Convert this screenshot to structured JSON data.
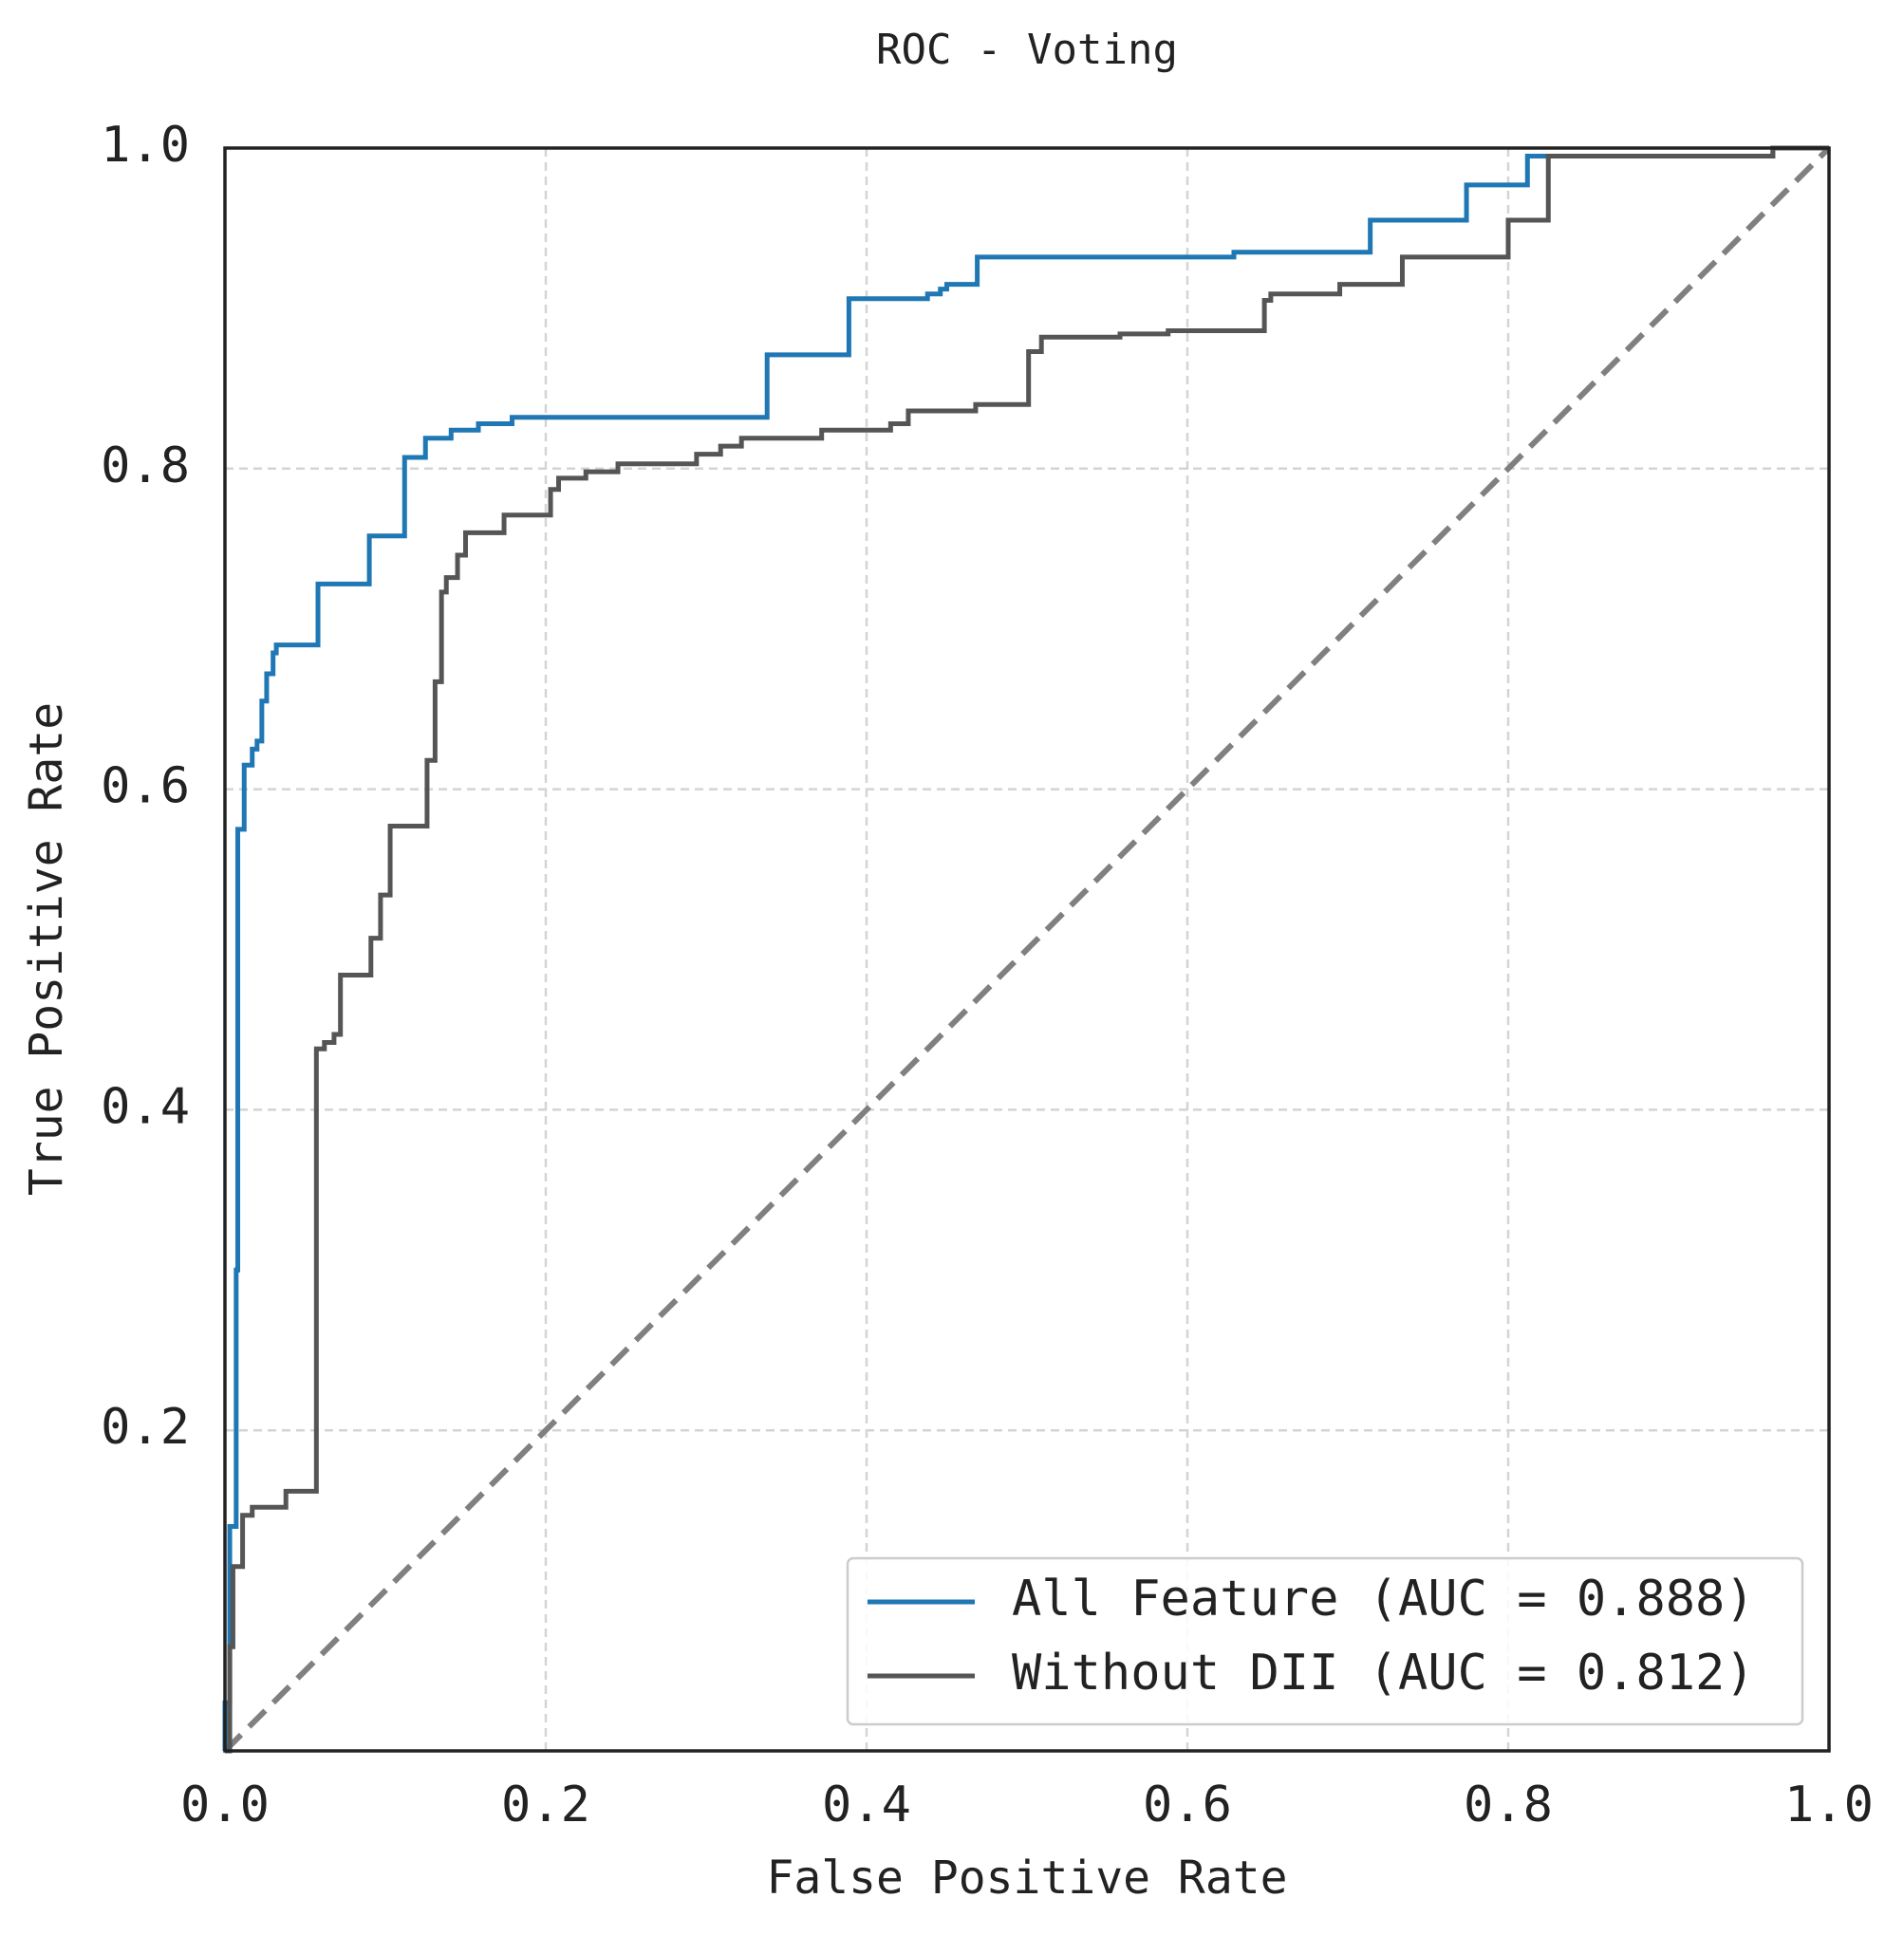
{
  "chart_data": {
    "type": "line",
    "title": "ROC - Voting",
    "x_label": "False Positive Rate",
    "y_label": "True Positive Rate",
    "xlim": [
      0,
      1
    ],
    "ylim": [
      0,
      1
    ],
    "xticks": [
      {
        "value": 0,
        "label": "0.0"
      },
      0.2,
      0.4,
      0.6,
      0.8,
      {
        "value": 1,
        "label": "1.0"
      }
    ],
    "yticks": [
      0.2,
      0.4,
      0.6,
      0.8,
      {
        "value": 1,
        "label": "1.0"
      }
    ],
    "grid": true,
    "legend": "lower right",
    "diagonal": true,
    "diagonal_color": "#808080",
    "series": [
      {
        "name": "All Feature (AUC = 0.888)",
        "color": "#1f77b4",
        "x": [
          0,
          0,
          0.003,
          0.003,
          0.007,
          0.007,
          0.008,
          0.008,
          0.012,
          0.012,
          0.017,
          0.017,
          0.02,
          0.02,
          0.023,
          0.023,
          0.026,
          0.026,
          0.03,
          0.03,
          0.032,
          0.032,
          0.058,
          0.058,
          0.09,
          0.09,
          0.112,
          0.112,
          0.125,
          0.125,
          0.141,
          0.141,
          0.158,
          0.158,
          0.179,
          0.179,
          0.338,
          0.338,
          0.389,
          0.389,
          0.438,
          0.438,
          0.446,
          0.446,
          0.45,
          0.45,
          0.469,
          0.469,
          0.629,
          0.629,
          0.714,
          0.714,
          0.774,
          0.774,
          0.812,
          0.812,
          0.965,
          0.965,
          1
        ],
        "values": [
          0,
          0.03,
          0.03,
          0.14,
          0.14,
          0.3,
          0.3,
          0.575,
          0.575,
          0.615,
          0.615,
          0.625,
          0.625,
          0.63,
          0.63,
          0.655,
          0.655,
          0.672,
          0.672,
          0.685,
          0.685,
          0.69,
          0.69,
          0.728,
          0.728,
          0.758,
          0.758,
          0.807,
          0.807,
          0.819,
          0.819,
          0.824,
          0.824,
          0.828,
          0.828,
          0.832,
          0.832,
          0.871,
          0.871,
          0.906,
          0.906,
          0.909,
          0.909,
          0.912,
          0.912,
          0.915,
          0.915,
          0.932,
          0.932,
          0.935,
          0.935,
          0.955,
          0.955,
          0.977,
          0.977,
          0.995,
          0.995,
          1,
          1
        ]
      },
      {
        "name": "Without DII (AUC = 0.812)",
        "color": "#555555",
        "x": [
          0,
          0.003,
          0.003,
          0.005,
          0.005,
          0.011,
          0.011,
          0.017,
          0.017,
          0.038,
          0.038,
          0.057,
          0.057,
          0.062,
          0.062,
          0.068,
          0.068,
          0.072,
          0.072,
          0.091,
          0.091,
          0.097,
          0.097,
          0.103,
          0.103,
          0.126,
          0.126,
          0.131,
          0.131,
          0.135,
          0.135,
          0.138,
          0.138,
          0.145,
          0.145,
          0.15,
          0.15,
          0.174,
          0.174,
          0.203,
          0.203,
          0.208,
          0.208,
          0.225,
          0.225,
          0.245,
          0.245,
          0.294,
          0.294,
          0.309,
          0.309,
          0.322,
          0.322,
          0.372,
          0.372,
          0.415,
          0.415,
          0.426,
          0.426,
          0.468,
          0.468,
          0.501,
          0.501,
          0.509,
          0.509,
          0.558,
          0.558,
          0.588,
          0.588,
          0.648,
          0.648,
          0.652,
          0.652,
          0.695,
          0.695,
          0.734,
          0.734,
          0.8,
          0.8,
          0.825,
          0.825,
          0.965,
          0.965,
          1
        ],
        "values": [
          0,
          0,
          0.065,
          0.065,
          0.115,
          0.115,
          0.147,
          0.147,
          0.152,
          0.152,
          0.162,
          0.162,
          0.438,
          0.438,
          0.442,
          0.442,
          0.447,
          0.447,
          0.484,
          0.484,
          0.507,
          0.507,
          0.534,
          0.534,
          0.577,
          0.577,
          0.618,
          0.618,
          0.667,
          0.667,
          0.723,
          0.723,
          0.732,
          0.732,
          0.746,
          0.746,
          0.76,
          0.76,
          0.771,
          0.771,
          0.787,
          0.787,
          0.794,
          0.794,
          0.798,
          0.798,
          0.803,
          0.803,
          0.809,
          0.809,
          0.814,
          0.814,
          0.819,
          0.819,
          0.824,
          0.824,
          0.828,
          0.828,
          0.836,
          0.836,
          0.84,
          0.84,
          0.873,
          0.873,
          0.882,
          0.882,
          0.884,
          0.884,
          0.886,
          0.886,
          0.905,
          0.905,
          0.909,
          0.909,
          0.915,
          0.915,
          0.932,
          0.932,
          0.955,
          0.955,
          0.995,
          0.995,
          1,
          1
        ]
      }
    ]
  }
}
